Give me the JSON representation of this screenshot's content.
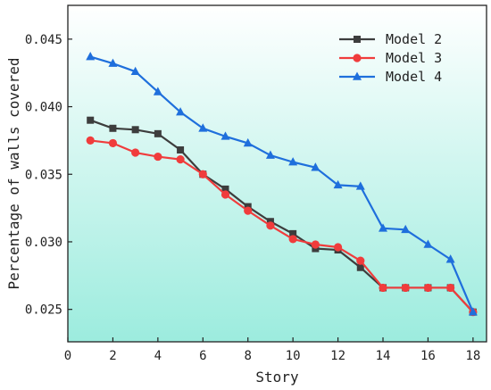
{
  "chart_data": {
    "type": "line",
    "xlabel": "Story",
    "ylabel": "Percentage of walls covered",
    "xlim": [
      0,
      18.6
    ],
    "ylim": [
      0.0226,
      0.0475
    ],
    "x_ticks": [
      0,
      2,
      4,
      6,
      8,
      10,
      12,
      14,
      16,
      18
    ],
    "x_tick_labels": [
      "0",
      "2",
      "4",
      "6",
      "8",
      "10",
      "12",
      "14",
      "16",
      "18"
    ],
    "y_ticks": [
      0.025,
      0.03,
      0.035,
      0.04,
      0.045
    ],
    "y_tick_labels": [
      "0.025",
      "0.030",
      "0.035",
      "0.040",
      "0.045"
    ],
    "grid": false,
    "legend_position": "top-right",
    "background": "vertical gradient, white at top to light aqua at bottom",
    "x": [
      1,
      2,
      3,
      4,
      5,
      6,
      7,
      8,
      9,
      10,
      11,
      12,
      13,
      14,
      15,
      16,
      17,
      18
    ],
    "series": [
      {
        "name": "Model 2",
        "color": "#3d3d3d",
        "marker": "square",
        "values": [
          0.039,
          0.0384,
          0.0383,
          0.038,
          0.0368,
          0.035,
          0.0339,
          0.0326,
          0.0315,
          0.0306,
          0.0295,
          0.0294,
          0.0281,
          0.0266,
          0.0266,
          0.0266,
          0.0266,
          0.0248
        ]
      },
      {
        "name": "Model 3",
        "color": "#f03c3c",
        "marker": "circle",
        "values": [
          0.0375,
          0.0373,
          0.0366,
          0.0363,
          0.0361,
          0.035,
          0.0335,
          0.0323,
          0.0312,
          0.0302,
          0.0298,
          0.0296,
          0.0286,
          0.0266,
          0.0266,
          0.0266,
          0.0266,
          0.0248
        ]
      },
      {
        "name": "Model 4",
        "color": "#1f6fdc",
        "marker": "triangle",
        "values": [
          0.0437,
          0.0432,
          0.0426,
          0.0411,
          0.0396,
          0.0384,
          0.0378,
          0.0373,
          0.0364,
          0.0359,
          0.0355,
          0.0342,
          0.0341,
          0.031,
          0.0309,
          0.0298,
          0.0287,
          0.0248
        ]
      }
    ]
  },
  "colors": {
    "gradient_top": "#ffffff",
    "gradient_bottom": "#9cecde",
    "axis": "#222222"
  }
}
